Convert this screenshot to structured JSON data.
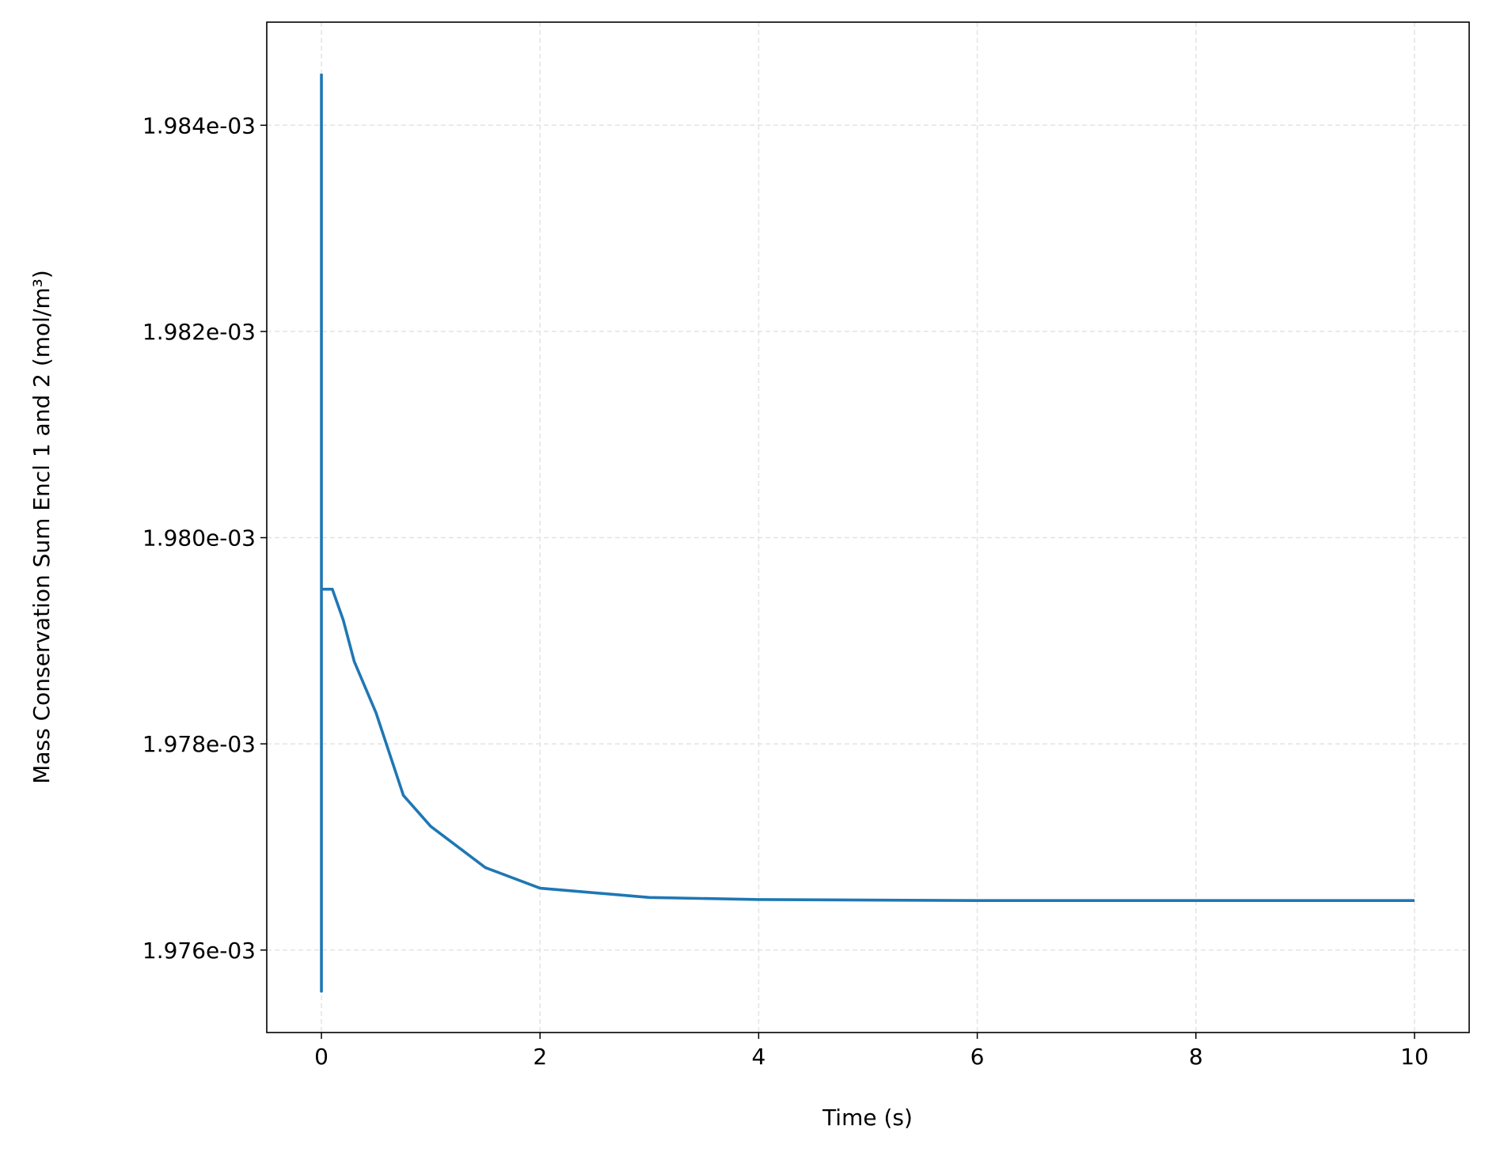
{
  "chart_data": {
    "type": "line",
    "xlabel": "Time (s)",
    "ylabel": "Mass Conservation Sum Encl 1 and 2 (mol/m³)",
    "x": [
      0,
      0,
      0,
      0.1,
      0.2,
      0.3,
      0.5,
      0.75,
      1,
      1.5,
      2,
      3,
      4,
      6,
      10
    ],
    "series": [
      {
        "name": "Mass Conservation Sum",
        "color": "#1f77b4",
        "values": [
          0.0019845,
          0.0019756,
          0.0019795,
          0.0019795,
          0.0019792,
          0.0019788,
          0.0019783,
          0.0019775,
          0.0019772,
          0.0019768,
          0.0019766,
          0.00197651,
          0.00197649,
          0.00197648,
          0.00197648
        ]
      }
    ],
    "xlim": [
      -0.5,
      10.5
    ],
    "ylim": [
      0.0019752,
      0.001985
    ],
    "xticks": [
      0,
      2,
      4,
      6,
      8,
      10
    ],
    "yticks": [
      {
        "value": 0.001976,
        "label": "1.976e-03"
      },
      {
        "value": 0.001978,
        "label": "1.978e-03"
      },
      {
        "value": 0.00198,
        "label": "1.980e-03"
      },
      {
        "value": 0.001982,
        "label": "1.982e-03"
      },
      {
        "value": 0.001984,
        "label": "1.984e-03"
      }
    ],
    "grid": true
  }
}
